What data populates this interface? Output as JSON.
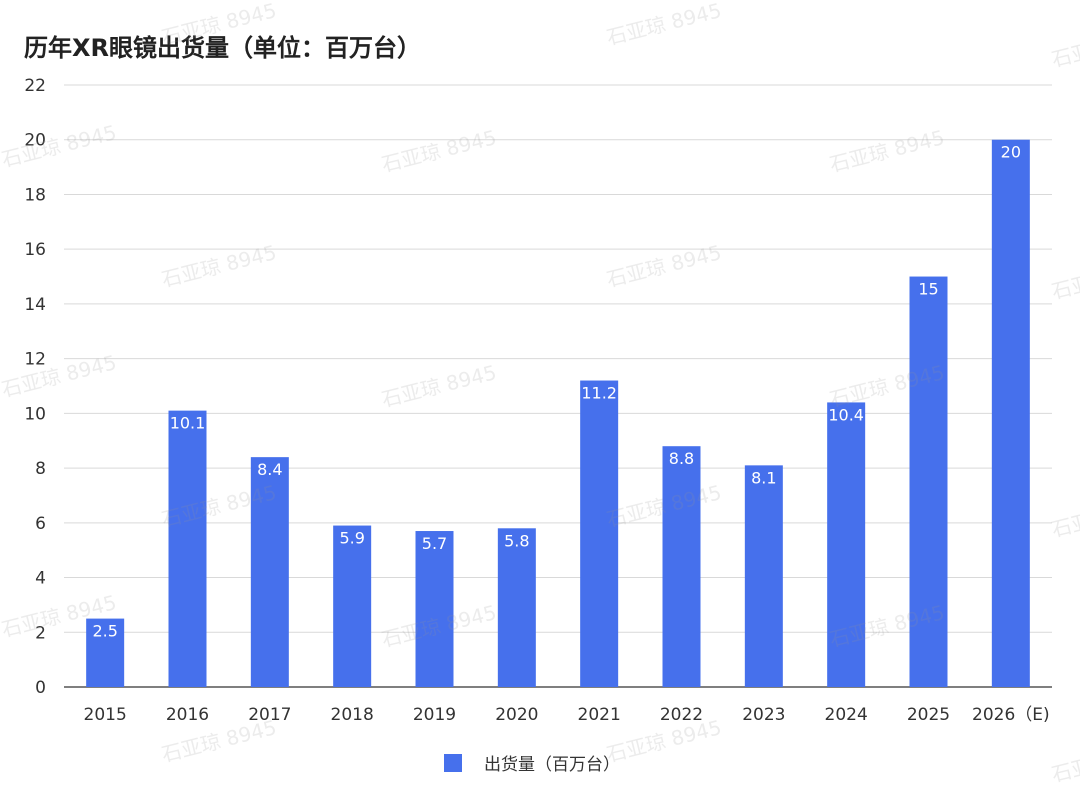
{
  "title": "历年XR眼镜出货量（单位：百万台）",
  "watermark": "石亚琼 8945",
  "colors": {
    "bar": "#4670EC",
    "grid": "#d9d9d9",
    "axis": "#333333",
    "label": "#ffffff",
    "tick": "#333333"
  },
  "chart_data": {
    "type": "bar",
    "title": "历年XR眼镜出货量（单位：百万台）",
    "xlabel": "",
    "ylabel": "",
    "categories": [
      "2015",
      "2016",
      "2017",
      "2018",
      "2019",
      "2020",
      "2021",
      "2022",
      "2023",
      "2024",
      "2025",
      "2026（E)"
    ],
    "series": [
      {
        "name": "出货量（百万台）",
        "values": [
          2.5,
          10.1,
          8.4,
          5.9,
          5.7,
          5.8,
          11.2,
          8.8,
          8.1,
          10.4,
          15,
          20
        ]
      }
    ],
    "data_labels": [
      "2.5",
      "10.1",
      "8.4",
      "5.9",
      "5.7",
      "5.8",
      "11.2",
      "8.8",
      "8.1",
      "10.4",
      "15",
      "20"
    ],
    "ylim": [
      0,
      22
    ],
    "yticks": [
      0,
      2,
      4,
      6,
      8,
      10,
      12,
      14,
      16,
      18,
      20,
      22
    ],
    "grid": true,
    "legend_position": "bottom-center"
  }
}
